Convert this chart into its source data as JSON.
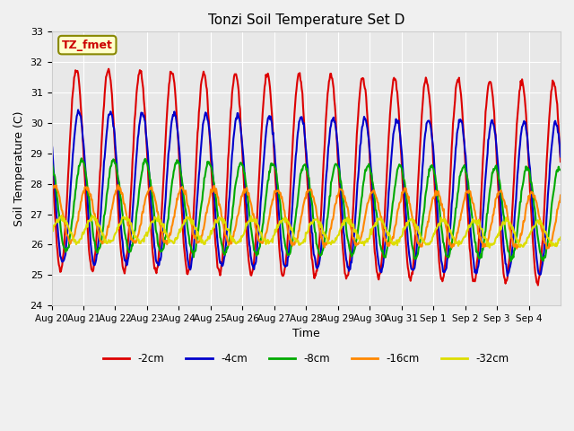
{
  "title": "Tonzi Soil Temperature Set D",
  "xlabel": "Time",
  "ylabel": "Soil Temperature (C)",
  "ylim": [
    24.0,
    33.0
  ],
  "yticks": [
    24.0,
    25.0,
    26.0,
    27.0,
    28.0,
    29.0,
    30.0,
    31.0,
    32.0,
    33.0
  ],
  "xtick_labels": [
    "Aug 20",
    "Aug 21",
    "Aug 22",
    "Aug 23",
    "Aug 24",
    "Aug 25",
    "Aug 26",
    "Aug 27",
    "Aug 28",
    "Aug 29",
    "Aug 30",
    "Aug 31",
    "Sep 1",
    "Sep 2",
    "Sep 3",
    "Sep 4"
  ],
  "series": [
    {
      "label": "-2cm",
      "color": "#dd0000",
      "lw": 1.5
    },
    {
      "label": "-4cm",
      "color": "#0000cc",
      "lw": 1.5
    },
    {
      "label": "-8cm",
      "color": "#00aa00",
      "lw": 1.5
    },
    {
      "label": "-16cm",
      "color": "#ff8800",
      "lw": 1.5
    },
    {
      "label": "-32cm",
      "color": "#dddd00",
      "lw": 1.5
    }
  ],
  "annotation_text": "TZ_fmet",
  "annotation_color": "#cc0000",
  "annotation_bg": "#ffffcc",
  "annotation_border": "#888800",
  "fig_bg_color": "#f0f0f0",
  "plot_bg_color": "#e8e8e8",
  "n_days": 16,
  "samples_per_day": 48
}
